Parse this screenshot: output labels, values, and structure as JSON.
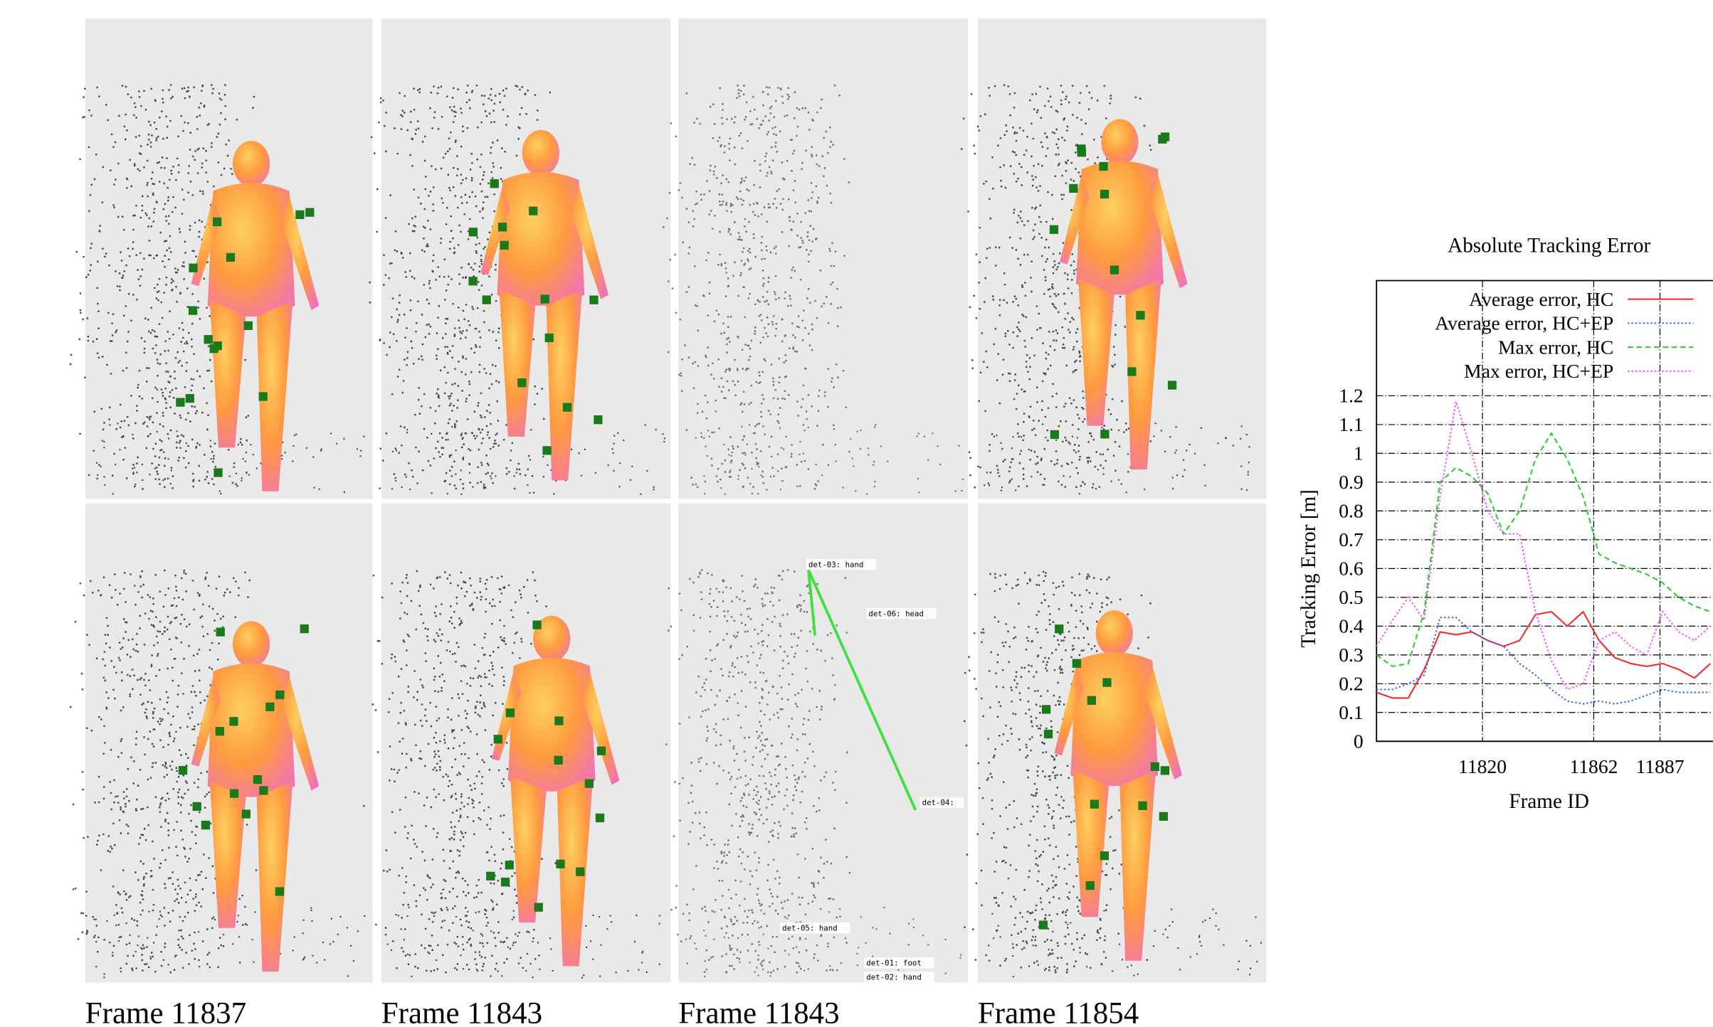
{
  "captions": [
    "Frame 11837",
    "Frame 11843",
    "Frame 11843",
    "Frame 11854"
  ],
  "detections": [
    "det-03: hand",
    "det-06: head",
    "det-04:",
    "det-05: hand",
    "det-01: foot",
    "det-02: hand"
  ],
  "chart_data": {
    "type": "line",
    "title": "Absolute Tracking Error",
    "xlabel": "Frame ID",
    "ylabel": "Tracking Error [m]",
    "x": [
      11780,
      11786,
      11792,
      11798,
      11804,
      11810,
      11816,
      11822,
      11828,
      11834,
      11840,
      11846,
      11852,
      11858,
      11864,
      11870,
      11876,
      11882,
      11888,
      11894,
      11900,
      11906
    ],
    "xlim": [
      11780,
      11907
    ],
    "xticks": [
      11820,
      11862,
      11887
    ],
    "ylim": [
      0,
      1.6
    ],
    "yticks": [
      0,
      0.1,
      0.2,
      0.3,
      0.4,
      0.5,
      0.6,
      0.7,
      0.8,
      0.9,
      1,
      1.1,
      1.2
    ],
    "grid": true,
    "legend": "upper right",
    "series": [
      {
        "name": "Average error, HC",
        "color": "#ff2020",
        "style": "solid",
        "values": [
          0.17,
          0.15,
          0.15,
          0.25,
          0.38,
          0.37,
          0.38,
          0.35,
          0.33,
          0.35,
          0.44,
          0.45,
          0.4,
          0.45,
          0.35,
          0.29,
          0.27,
          0.26,
          0.27,
          0.25,
          0.22,
          0.27
        ]
      },
      {
        "name": "Average error, HC+EP",
        "color": "#3060ff",
        "style": "dotted",
        "values": [
          0.18,
          0.18,
          0.2,
          0.23,
          0.43,
          0.43,
          0.38,
          0.35,
          0.33,
          0.27,
          0.23,
          0.18,
          0.14,
          0.13,
          0.14,
          0.13,
          0.14,
          0.16,
          0.18,
          0.17,
          0.17,
          0.17
        ]
      },
      {
        "name": "Max error, HC",
        "color": "#20d020",
        "style": "dashed",
        "values": [
          0.3,
          0.26,
          0.27,
          0.45,
          0.9,
          0.95,
          0.92,
          0.86,
          0.72,
          0.8,
          0.98,
          1.07,
          0.98,
          0.85,
          0.65,
          0.62,
          0.6,
          0.58,
          0.55,
          0.5,
          0.47,
          0.45
        ]
      },
      {
        "name": "Max error, HC+EP",
        "color": "#ff40ff",
        "style": "dotted",
        "values": [
          0.33,
          0.42,
          0.5,
          0.42,
          0.85,
          1.18,
          1.0,
          0.8,
          0.72,
          0.72,
          0.45,
          0.28,
          0.18,
          0.2,
          0.35,
          0.38,
          0.33,
          0.3,
          0.45,
          0.38,
          0.35,
          0.4
        ]
      }
    ]
  }
}
